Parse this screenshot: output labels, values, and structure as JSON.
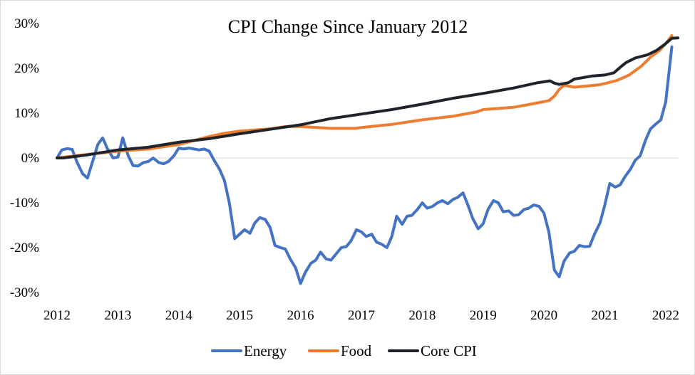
{
  "chart_data": {
    "type": "line",
    "title": "CPI Change Since January 2012",
    "xlabel": "",
    "ylabel": "",
    "xlim": [
      2012.0,
      2022.2
    ],
    "ylim": [
      -30,
      30
    ],
    "y_ticks": [
      "30%",
      "20%",
      "10%",
      "0%",
      "-10%",
      "-20%",
      "-30%"
    ],
    "y_tick_values": [
      30,
      20,
      10,
      0,
      -10,
      -20,
      -30
    ],
    "x_ticks": [
      "2012",
      "2013",
      "2014",
      "2015",
      "2016",
      "2017",
      "2018",
      "2019",
      "2020",
      "2021",
      "2022"
    ],
    "x_tick_values": [
      2012,
      2013,
      2014,
      2015,
      2016,
      2017,
      2018,
      2019,
      2020,
      2021,
      2022
    ],
    "grid": false,
    "legend": "bottom",
    "series": [
      {
        "name": "Energy",
        "color": "#4472C4",
        "points": [
          [
            2012.0,
            0.0
          ],
          [
            2012.08,
            1.8
          ],
          [
            2012.17,
            2.1
          ],
          [
            2012.25,
            1.9
          ],
          [
            2012.33,
            -1.0
          ],
          [
            2012.42,
            -3.5
          ],
          [
            2012.5,
            -4.5
          ],
          [
            2012.58,
            -1.0
          ],
          [
            2012.67,
            3.0
          ],
          [
            2012.75,
            4.5
          ],
          [
            2012.83,
            2.0
          ],
          [
            2012.92,
            0.0
          ],
          [
            2013.0,
            0.2
          ],
          [
            2013.08,
            4.5
          ],
          [
            2013.17,
            0.5
          ],
          [
            2013.25,
            -1.7
          ],
          [
            2013.33,
            -1.8
          ],
          [
            2013.42,
            -1.0
          ],
          [
            2013.5,
            -0.8
          ],
          [
            2013.58,
            0.0
          ],
          [
            2013.67,
            -1.0
          ],
          [
            2013.75,
            -1.3
          ],
          [
            2013.83,
            -0.8
          ],
          [
            2013.92,
            0.5
          ],
          [
            2014.0,
            2.2
          ],
          [
            2014.08,
            2.0
          ],
          [
            2014.17,
            2.2
          ],
          [
            2014.25,
            2.0
          ],
          [
            2014.33,
            1.8
          ],
          [
            2014.42,
            2.0
          ],
          [
            2014.5,
            1.5
          ],
          [
            2014.58,
            -0.5
          ],
          [
            2014.67,
            -2.5
          ],
          [
            2014.75,
            -5.0
          ],
          [
            2014.83,
            -10.0
          ],
          [
            2014.92,
            -18.0
          ],
          [
            2015.0,
            -17.0
          ],
          [
            2015.08,
            -16.0
          ],
          [
            2015.17,
            -16.8
          ],
          [
            2015.25,
            -14.5
          ],
          [
            2015.33,
            -13.3
          ],
          [
            2015.42,
            -13.7
          ],
          [
            2015.5,
            -15.5
          ],
          [
            2015.58,
            -19.5
          ],
          [
            2015.67,
            -20.0
          ],
          [
            2015.75,
            -20.3
          ],
          [
            2015.83,
            -22.5
          ],
          [
            2015.92,
            -24.5
          ],
          [
            2016.0,
            -28.0
          ],
          [
            2016.08,
            -25.5
          ],
          [
            2016.17,
            -23.5
          ],
          [
            2016.25,
            -22.8
          ],
          [
            2016.33,
            -21.0
          ],
          [
            2016.42,
            -22.5
          ],
          [
            2016.5,
            -22.8
          ],
          [
            2016.58,
            -21.5
          ],
          [
            2016.67,
            -20.0
          ],
          [
            2016.75,
            -19.8
          ],
          [
            2016.83,
            -18.5
          ],
          [
            2016.92,
            -16.0
          ],
          [
            2017.0,
            -16.5
          ],
          [
            2017.08,
            -17.5
          ],
          [
            2017.17,
            -17.0
          ],
          [
            2017.25,
            -18.8
          ],
          [
            2017.33,
            -19.2
          ],
          [
            2017.42,
            -20.0
          ],
          [
            2017.5,
            -17.5
          ],
          [
            2017.58,
            -13.0
          ],
          [
            2017.67,
            -14.8
          ],
          [
            2017.75,
            -13.0
          ],
          [
            2017.83,
            -12.8
          ],
          [
            2017.92,
            -11.5
          ],
          [
            2018.0,
            -10.0
          ],
          [
            2018.08,
            -11.2
          ],
          [
            2018.17,
            -10.8
          ],
          [
            2018.25,
            -10.0
          ],
          [
            2018.33,
            -9.5
          ],
          [
            2018.42,
            -10.2
          ],
          [
            2018.5,
            -9.3
          ],
          [
            2018.58,
            -8.8
          ],
          [
            2018.67,
            -7.8
          ],
          [
            2018.75,
            -10.5
          ],
          [
            2018.83,
            -13.5
          ],
          [
            2018.92,
            -15.8
          ],
          [
            2019.0,
            -14.7
          ],
          [
            2019.08,
            -11.5
          ],
          [
            2019.17,
            -9.5
          ],
          [
            2019.25,
            -10.0
          ],
          [
            2019.33,
            -12.0
          ],
          [
            2019.42,
            -11.8
          ],
          [
            2019.5,
            -12.8
          ],
          [
            2019.58,
            -12.7
          ],
          [
            2019.67,
            -11.5
          ],
          [
            2019.75,
            -11.2
          ],
          [
            2019.83,
            -10.5
          ],
          [
            2019.92,
            -10.8
          ],
          [
            2020.0,
            -12.3
          ],
          [
            2020.08,
            -16.5
          ],
          [
            2020.17,
            -25.0
          ],
          [
            2020.25,
            -26.5
          ],
          [
            2020.33,
            -23.0
          ],
          [
            2020.42,
            -21.2
          ],
          [
            2020.5,
            -20.8
          ],
          [
            2020.58,
            -19.5
          ],
          [
            2020.67,
            -19.8
          ],
          [
            2020.75,
            -19.7
          ],
          [
            2020.83,
            -17.0
          ],
          [
            2020.92,
            -14.5
          ],
          [
            2021.0,
            -10.5
          ],
          [
            2021.08,
            -5.7
          ],
          [
            2021.17,
            -6.5
          ],
          [
            2021.25,
            -6.0
          ],
          [
            2021.33,
            -4.2
          ],
          [
            2021.42,
            -2.5
          ],
          [
            2021.5,
            -0.5
          ],
          [
            2021.58,
            0.5
          ],
          [
            2021.67,
            4.0
          ],
          [
            2021.75,
            6.5
          ],
          [
            2021.83,
            7.5
          ],
          [
            2021.92,
            8.5
          ],
          [
            2022.0,
            12.5
          ],
          [
            2022.1,
            24.8
          ]
        ]
      },
      {
        "name": "Food",
        "color": "#ED7D31",
        "points": [
          [
            2012.0,
            0.0
          ],
          [
            2012.5,
            0.8
          ],
          [
            2013.0,
            1.5
          ],
          [
            2013.5,
            2.0
          ],
          [
            2014.0,
            3.0
          ],
          [
            2014.5,
            4.8
          ],
          [
            2014.75,
            5.5
          ],
          [
            2015.0,
            6.0
          ],
          [
            2015.5,
            6.5
          ],
          [
            2015.75,
            7.0
          ],
          [
            2016.0,
            7.0
          ],
          [
            2016.5,
            6.6
          ],
          [
            2016.9,
            6.6
          ],
          [
            2017.0,
            6.8
          ],
          [
            2017.5,
            7.5
          ],
          [
            2018.0,
            8.5
          ],
          [
            2018.5,
            9.3
          ],
          [
            2018.9,
            10.3
          ],
          [
            2019.0,
            10.8
          ],
          [
            2019.5,
            11.3
          ],
          [
            2019.9,
            12.3
          ],
          [
            2020.08,
            12.8
          ],
          [
            2020.17,
            13.8
          ],
          [
            2020.25,
            15.3
          ],
          [
            2020.33,
            16.2
          ],
          [
            2020.5,
            15.8
          ],
          [
            2020.9,
            16.3
          ],
          [
            2021.0,
            16.6
          ],
          [
            2021.2,
            17.3
          ],
          [
            2021.4,
            18.5
          ],
          [
            2021.6,
            20.5
          ],
          [
            2021.75,
            22.5
          ],
          [
            2021.9,
            24.0
          ],
          [
            2022.0,
            25.5
          ],
          [
            2022.1,
            27.3
          ]
        ]
      },
      {
        "name": "Core CPI",
        "color": "#1F242A",
        "points": [
          [
            2012.0,
            0.0
          ],
          [
            2012.1,
            0.0
          ],
          [
            2012.5,
            0.7
          ],
          [
            2013.0,
            1.8
          ],
          [
            2013.5,
            2.4
          ],
          [
            2014.0,
            3.5
          ],
          [
            2014.5,
            4.3
          ],
          [
            2015.0,
            5.4
          ],
          [
            2015.5,
            6.4
          ],
          [
            2016.0,
            7.4
          ],
          [
            2016.5,
            8.8
          ],
          [
            2017.0,
            9.8
          ],
          [
            2017.5,
            10.8
          ],
          [
            2018.0,
            12.0
          ],
          [
            2018.5,
            13.3
          ],
          [
            2019.0,
            14.4
          ],
          [
            2019.5,
            15.6
          ],
          [
            2019.9,
            16.8
          ],
          [
            2020.1,
            17.2
          ],
          [
            2020.17,
            16.7
          ],
          [
            2020.25,
            16.4
          ],
          [
            2020.4,
            16.8
          ],
          [
            2020.5,
            17.6
          ],
          [
            2020.8,
            18.3
          ],
          [
            2021.0,
            18.5
          ],
          [
            2021.15,
            19.0
          ],
          [
            2021.25,
            20.2
          ],
          [
            2021.35,
            21.3
          ],
          [
            2021.5,
            22.3
          ],
          [
            2021.7,
            23.0
          ],
          [
            2021.85,
            24.0
          ],
          [
            2022.0,
            25.5
          ],
          [
            2022.1,
            26.7
          ],
          [
            2022.2,
            26.8
          ]
        ]
      }
    ]
  }
}
